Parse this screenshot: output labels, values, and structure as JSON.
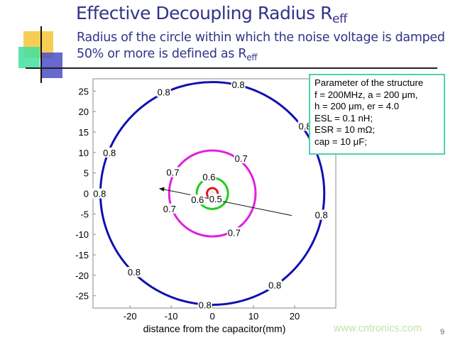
{
  "slide": {
    "title": "Effective Decoupling Radius R",
    "title_sub": "eff",
    "subtitle": "Radius of the circle within which the noise voltage is damped 50% or more is defined as R",
    "subtitle_sub": "eff",
    "watermark": "www.cntronics.com",
    "page_number": "9",
    "colors": {
      "title": "#33338a",
      "box_border": "#4fd0b0",
      "deco_yellow": "#f7c842",
      "deco_green": "#3fe0a0",
      "deco_blue": "#4a4fc8"
    }
  },
  "parameters": {
    "heading": "Parameter of the structure",
    "lines": [
      "f  = 200MHz,  a = 200 μm,",
      "h = 200 μm, er = 4.0",
      "ESL = 0.1 nH;",
      "ESR = 10 mΩ;",
      "cap = 10 μF;"
    ]
  },
  "chart_data": {
    "type": "contour",
    "title": "",
    "xlabel": "distance from the capacitor(mm)",
    "ylabel": "",
    "xlim": [
      -29,
      30
    ],
    "ylim": [
      -28,
      28
    ],
    "xticks": [
      -20,
      -10,
      0,
      10,
      20
    ],
    "yticks": [
      25,
      20,
      15,
      10,
      5,
      0,
      -5,
      -10,
      -15,
      -20,
      -25
    ],
    "grid": false,
    "contours": [
      {
        "level": 0.5,
        "radius": 1.3,
        "color": "#e01818"
      },
      {
        "level": 0.6,
        "radius": 3.8,
        "color": "#22cc22"
      },
      {
        "level": 0.7,
        "radius": 10.5,
        "color": "#e020e0"
      },
      {
        "level": 0.8,
        "radius": 27.2,
        "color": "#1010b0"
      }
    ],
    "contour_labels": [
      {
        "text": "0.8",
        "x": -11.8,
        "y": 24.8
      },
      {
        "text": "0.8",
        "x": 6.3,
        "y": 26.6
      },
      {
        "text": "0.8",
        "x": 22.5,
        "y": 16.5
      },
      {
        "text": "0.8",
        "x": -25.0,
        "y": 10.0
      },
      {
        "text": "0.8",
        "x": -27.4,
        "y": 0
      },
      {
        "text": "0.8",
        "x": 26.5,
        "y": -5.2
      },
      {
        "text": "0.8",
        "x": -19.0,
        "y": -19.2
      },
      {
        "text": "0.8",
        "x": 15.2,
        "y": -22.4
      },
      {
        "text": "0.8",
        "x": -1.8,
        "y": -27.2
      },
      {
        "text": "0.7",
        "x": 7.0,
        "y": 8.6
      },
      {
        "text": "0.7",
        "x": -9.6,
        "y": 5.2
      },
      {
        "text": "0.7",
        "x": -10.4,
        "y": -3.7
      },
      {
        "text": "0.7",
        "x": 5.3,
        "y": -9.5
      },
      {
        "text": "0.6",
        "x": -0.8,
        "y": 4.1
      },
      {
        "text": "0.6",
        "x": -3.6,
        "y": -1.5
      },
      {
        "text": "0.5",
        "x": 0.8,
        "y": -1.3
      }
    ],
    "arrow": {
      "from": [
        19.3,
        -5.4
      ],
      "to": [
        -13.0,
        1.2
      ]
    }
  }
}
